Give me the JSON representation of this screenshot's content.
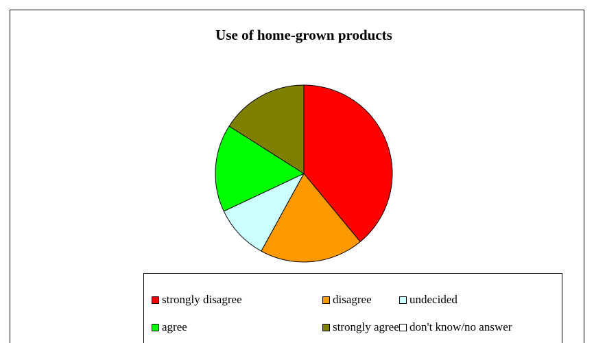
{
  "chart_data": {
    "type": "pie",
    "title": "Use of home-grown products",
    "categories": [
      "strongly disagree",
      "disagree",
      "undecided",
      "agree",
      "strongly agree",
      "don't know/no answer"
    ],
    "values": [
      39,
      19,
      10,
      16,
      16,
      0
    ],
    "colors": [
      "#ff0000",
      "#ff9900",
      "#ccffff",
      "#00ff00",
      "#808000",
      "#ffffff"
    ]
  }
}
